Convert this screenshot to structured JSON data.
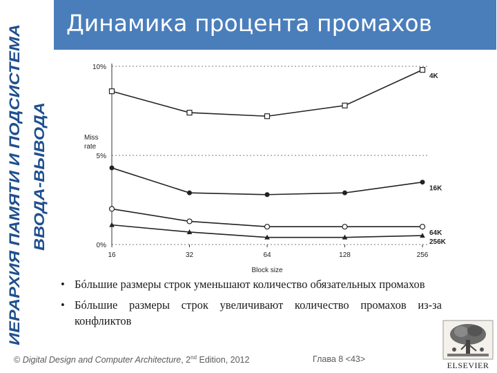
{
  "slide": {
    "title": "Динамика процента промахов",
    "side_label_line1": "ИЕРАРХИЯ ПАМЯТИ И ПОДСИСТЕМА",
    "side_label_line2": "ВВОДА-ВЫВОДА",
    "bullets": [
      "Бóльшие размеры строк уменьшают количество обязательных промахов",
      "Бóльшие размеры строк увеличивают количество промахов из-за конфликтов"
    ],
    "footer": {
      "copyright": "© ",
      "book_title": "Digital Design and Computer Architecture",
      "edition_pre": ", 2",
      "edition_sup": "nd",
      "edition_post": " Edition, 2012",
      "chapter": "Глава 8 <43>"
    },
    "logo_text": "ELSEVIER",
    "colors": {
      "title_bar": "#4a7ebb",
      "side_label": "#1f4f8f"
    }
  },
  "chart_data": {
    "type": "line",
    "xlabel": "Block size",
    "ylabel": "Miss\nrate",
    "categories": [
      "16",
      "32",
      "64",
      "128",
      "256"
    ],
    "yticks": [
      "0%",
      "5%",
      "10%"
    ],
    "ylim": [
      0,
      10
    ],
    "grid": "dotted horizontal at 0%, 5%, 10%",
    "series": [
      {
        "name": "4K",
        "marker": "open-square",
        "values": [
          8.6,
          7.4,
          7.2,
          7.8,
          9.8
        ]
      },
      {
        "name": "16K",
        "marker": "filled-circle",
        "values": [
          4.3,
          2.9,
          2.8,
          2.9,
          3.5
        ]
      },
      {
        "name": "64K",
        "marker": "open-circle",
        "values": [
          2.0,
          1.3,
          1.0,
          1.0,
          1.0
        ]
      },
      {
        "name": "256K",
        "marker": "filled-triangle",
        "values": [
          1.1,
          0.7,
          0.4,
          0.4,
          0.5
        ]
      }
    ]
  }
}
